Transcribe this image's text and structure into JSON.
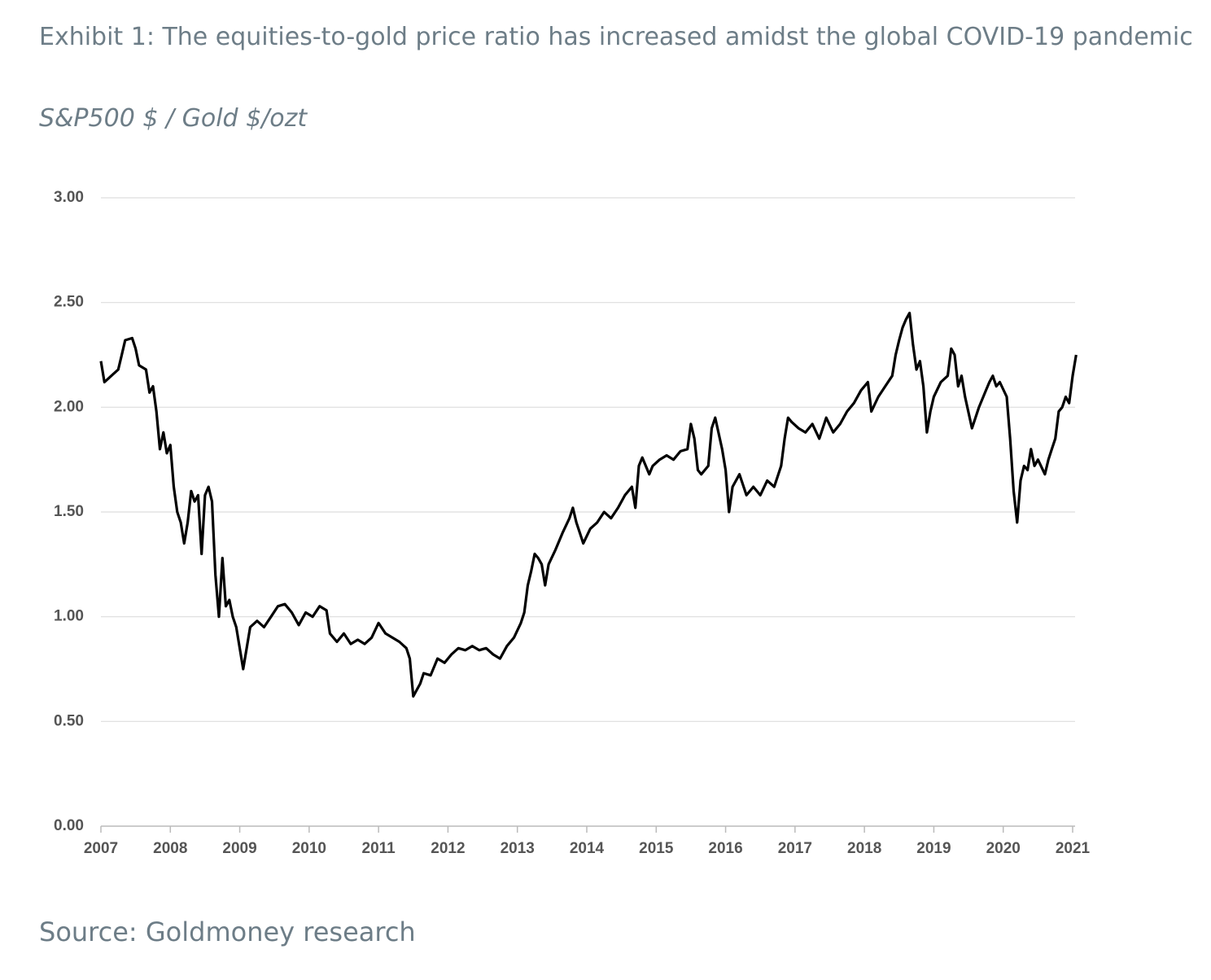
{
  "chart_data": {
    "type": "line",
    "title": "Exhibit 1: The equities-to-gold price ratio has increased amidst the global COVID-19 pandemic",
    "subtitle": "S&P500 $ / Gold $/ozt",
    "source": "Source: Goldmoney research",
    "color": "#000000",
    "grid": true,
    "xlim": [
      2007,
      2021.05
    ],
    "xticks": [
      2007,
      2008,
      2009,
      2010,
      2011,
      2012,
      2013,
      2014,
      2015,
      2016,
      2017,
      2018,
      2019,
      2020,
      2021
    ],
    "ylim": [
      0,
      3
    ],
    "yticks": [
      {
        "value": 0,
        "label": "0.00"
      },
      {
        "value": 0.5,
        "label": "0.50"
      },
      {
        "value": 1,
        "label": "1.00"
      },
      {
        "value": 1.5,
        "label": "1.50"
      },
      {
        "value": 2,
        "label": "2.00"
      },
      {
        "value": 2.5,
        "label": "2.50"
      },
      {
        "value": 3,
        "label": "3.00"
      }
    ],
    "x": [
      2007.0,
      2007.05,
      2007.15,
      2007.25,
      2007.3,
      2007.35,
      2007.45,
      2007.5,
      2007.55,
      2007.65,
      2007.7,
      2007.75,
      2007.8,
      2007.85,
      2007.9,
      2007.95,
      2008.0,
      2008.05,
      2008.1,
      2008.15,
      2008.2,
      2008.25,
      2008.3,
      2008.35,
      2008.4,
      2008.45,
      2008.5,
      2008.55,
      2008.6,
      2008.65,
      2008.7,
      2008.75,
      2008.8,
      2008.85,
      2008.9,
      2008.95,
      2009.05,
      2009.1,
      2009.15,
      2009.25,
      2009.35,
      2009.45,
      2009.55,
      2009.65,
      2009.75,
      2009.85,
      2009.95,
      2010.05,
      2010.15,
      2010.25,
      2010.3,
      2010.4,
      2010.5,
      2010.6,
      2010.7,
      2010.8,
      2010.9,
      2011.0,
      2011.1,
      2011.2,
      2011.3,
      2011.4,
      2011.45,
      2011.5,
      2011.55,
      2011.6,
      2011.65,
      2011.75,
      2011.85,
      2011.95,
      2012.05,
      2012.15,
      2012.25,
      2012.35,
      2012.45,
      2012.55,
      2012.65,
      2012.75,
      2012.85,
      2012.95,
      2013.05,
      2013.1,
      2013.15,
      2013.2,
      2013.25,
      2013.3,
      2013.35,
      2013.4,
      2013.45,
      2013.55,
      2013.65,
      2013.75,
      2013.8,
      2013.85,
      2013.9,
      2013.95,
      2014.05,
      2014.15,
      2014.25,
      2014.35,
      2014.45,
      2014.55,
      2014.65,
      2014.7,
      2014.75,
      2014.8,
      2014.9,
      2014.95,
      2015.05,
      2015.15,
      2015.25,
      2015.35,
      2015.45,
      2015.5,
      2015.55,
      2015.6,
      2015.65,
      2015.75,
      2015.8,
      2015.85,
      2015.95,
      2016.0,
      2016.05,
      2016.1,
      2016.2,
      2016.3,
      2016.4,
      2016.5,
      2016.6,
      2016.7,
      2016.8,
      2016.85,
      2016.9,
      2016.95,
      2017.05,
      2017.15,
      2017.25,
      2017.35,
      2017.45,
      2017.55,
      2017.65,
      2017.75,
      2017.85,
      2017.95,
      2018.05,
      2018.1,
      2018.2,
      2018.3,
      2018.4,
      2018.45,
      2018.5,
      2018.55,
      2018.6,
      2018.65,
      2018.7,
      2018.75,
      2018.8,
      2018.85,
      2018.9,
      2018.95,
      2019.0,
      2019.1,
      2019.2,
      2019.25,
      2019.3,
      2019.35,
      2019.4,
      2019.45,
      2019.55,
      2019.6,
      2019.65,
      2019.75,
      2019.8,
      2019.85,
      2019.9,
      2019.95,
      2020.05,
      2020.1,
      2020.15,
      2020.2,
      2020.25,
      2020.3,
      2020.35,
      2020.4,
      2020.45,
      2020.5,
      2020.6,
      2020.65,
      2020.7,
      2020.75,
      2020.8,
      2020.85,
      2020.9,
      2020.95,
      2021.0,
      2021.05
    ],
    "values": [
      2.22,
      2.12,
      2.15,
      2.18,
      2.25,
      2.32,
      2.33,
      2.28,
      2.2,
      2.18,
      2.07,
      2.1,
      1.98,
      1.8,
      1.88,
      1.78,
      1.82,
      1.62,
      1.5,
      1.45,
      1.35,
      1.45,
      1.6,
      1.55,
      1.58,
      1.3,
      1.58,
      1.62,
      1.55,
      1.2,
      1.0,
      1.28,
      1.05,
      1.08,
      1.0,
      0.95,
      0.75,
      0.85,
      0.95,
      0.98,
      0.95,
      1.0,
      1.05,
      1.06,
      1.02,
      0.96,
      1.02,
      1.0,
      1.05,
      1.03,
      0.92,
      0.88,
      0.92,
      0.87,
      0.89,
      0.87,
      0.9,
      0.97,
      0.92,
      0.9,
      0.88,
      0.85,
      0.8,
      0.62,
      0.65,
      0.68,
      0.73,
      0.72,
      0.8,
      0.78,
      0.82,
      0.85,
      0.84,
      0.86,
      0.84,
      0.85,
      0.82,
      0.8,
      0.86,
      0.9,
      0.97,
      1.02,
      1.15,
      1.22,
      1.3,
      1.28,
      1.25,
      1.15,
      1.25,
      1.32,
      1.4,
      1.47,
      1.52,
      1.45,
      1.4,
      1.35,
      1.42,
      1.45,
      1.5,
      1.47,
      1.52,
      1.58,
      1.62,
      1.52,
      1.72,
      1.76,
      1.68,
      1.72,
      1.75,
      1.77,
      1.75,
      1.79,
      1.8,
      1.92,
      1.85,
      1.7,
      1.68,
      1.72,
      1.9,
      1.95,
      1.8,
      1.7,
      1.5,
      1.62,
      1.68,
      1.58,
      1.62,
      1.58,
      1.65,
      1.62,
      1.72,
      1.85,
      1.95,
      1.93,
      1.9,
      1.88,
      1.92,
      1.85,
      1.95,
      1.88,
      1.92,
      1.98,
      2.02,
      2.08,
      2.12,
      1.98,
      2.05,
      2.1,
      2.15,
      2.25,
      2.32,
      2.38,
      2.42,
      2.45,
      2.3,
      2.18,
      2.22,
      2.1,
      1.88,
      1.98,
      2.05,
      2.12,
      2.15,
      2.28,
      2.25,
      2.1,
      2.15,
      2.05,
      1.9,
      1.95,
      2.0,
      2.08,
      2.12,
      2.15,
      2.1,
      2.12,
      2.05,
      1.85,
      1.6,
      1.45,
      1.65,
      1.72,
      1.7,
      1.8,
      1.72,
      1.75,
      1.68,
      1.75,
      1.8,
      1.85,
      1.98,
      2.0,
      2.05,
      2.02,
      2.15,
      2.25
    ]
  }
}
